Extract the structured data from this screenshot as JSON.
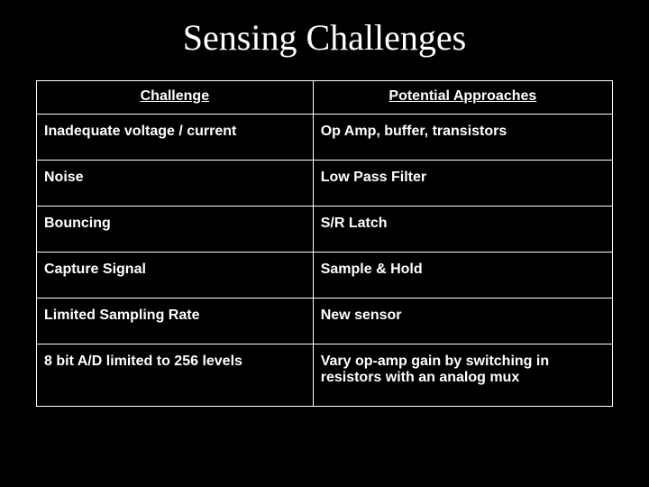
{
  "slide": {
    "title": "Sensing Challenges",
    "background_color": "#000000",
    "text_color": "#ffffff",
    "border_color": "#ffffff",
    "title_fontsize": 40,
    "cell_fontsize": 16
  },
  "table": {
    "columns": [
      "Challenge",
      "Potential Approaches"
    ],
    "rows": [
      [
        "Inadequate voltage / current",
        "Op Amp, buffer, transistors"
      ],
      [
        "Noise",
        "Low Pass Filter"
      ],
      [
        "Bouncing",
        "S/R Latch"
      ],
      [
        "Capture Signal",
        "Sample & Hold"
      ],
      [
        "Limited Sampling Rate",
        "New sensor"
      ],
      [
        "8 bit A/D limited to 256 levels",
        "Vary op-amp gain by switching in resistors with an analog mux"
      ]
    ]
  }
}
